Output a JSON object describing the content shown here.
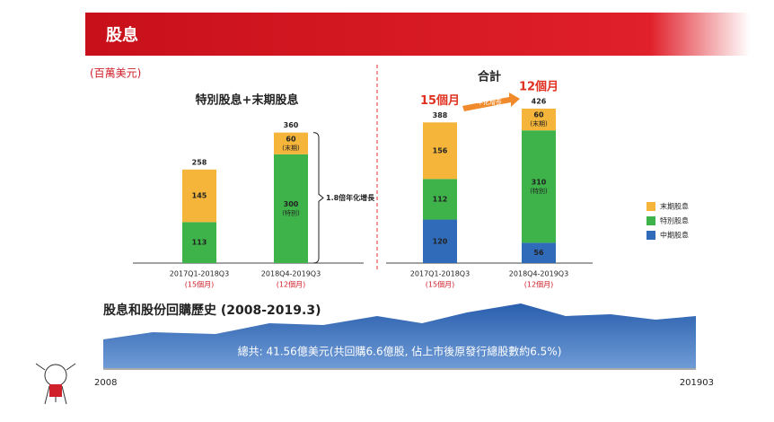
{
  "header": {
    "title": "股息"
  },
  "unit": "(百萬美元)",
  "chart_data": [
    {
      "type": "bar",
      "stacked": true,
      "title": "特別股息+末期股息",
      "categories": [
        "2017Q1-2018Q3",
        "2018Q4-2019Q3"
      ],
      "category_notes": [
        "(15個月)",
        "(12個月)"
      ],
      "series": [
        {
          "color": "#3db34a",
          "values": [
            113,
            300
          ],
          "notes": [
            null,
            "(特別)"
          ]
        },
        {
          "color": "#f5b53a",
          "values": [
            145,
            60
          ],
          "notes": [
            null,
            "(末期)"
          ]
        }
      ],
      "totals": [
        258,
        360
      ],
      "annotation": "1.8倍年化增長"
    },
    {
      "type": "bar",
      "stacked": true,
      "title": "合計",
      "categories": [
        "2017Q1-2018Q3",
        "2018Q4-2019Q3"
      ],
      "category_notes": [
        "(15個月)",
        "(12個月)"
      ],
      "period_labels": [
        "15個月",
        "12個月"
      ],
      "arrow_label": "年化增長",
      "series": [
        {
          "name": "中期股息",
          "color": "#2f6bb8",
          "values": [
            120,
            56
          ],
          "notes": [
            null,
            null
          ]
        },
        {
          "name": "特別股息",
          "color": "#3db34a",
          "values": [
            112,
            310
          ],
          "notes": [
            null,
            "(特別)"
          ]
        },
        {
          "name": "末期股息",
          "color": "#f5b53a",
          "values": [
            156,
            60
          ],
          "notes": [
            null,
            "(末期)"
          ]
        }
      ],
      "totals": [
        388,
        426
      ],
      "legend": "right"
    }
  ],
  "history": {
    "title": "股息和股份回購歷史 (2008-2019.3)",
    "banner": "總共: 41.56億美元(共回購6.6億股, 佔上市後原發行總股數約6.5%)",
    "x_start": "2008",
    "x_end": "201903"
  }
}
